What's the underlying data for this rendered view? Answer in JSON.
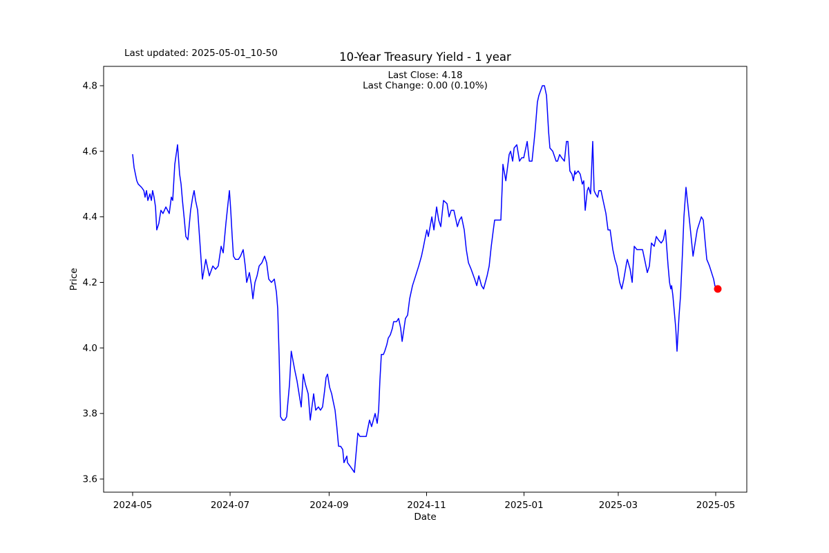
{
  "window": {
    "background": "#ffffff"
  },
  "annotation": {
    "last_updated": "Last updated: 2025-05-01_10-50"
  },
  "title": "10-Year Treasury Yield - 1 year",
  "subtitle_line1": "Last Close: 4.18",
  "subtitle_line2": "Last Change: 0.00 (0.10%)",
  "axes": {
    "x_label": "Date",
    "y_label": "Price",
    "x_tick_labels": [
      "2024-05",
      "2024-07",
      "2024-09",
      "2024-11",
      "2025-01",
      "2025-03",
      "2025-05"
    ],
    "y_tick_labels": [
      "3.6",
      "3.8",
      "4.0",
      "4.2",
      "4.4",
      "4.6",
      "4.8"
    ]
  },
  "chart_data": {
    "type": "line",
    "title": "10-Year Treasury Yield - 1 year",
    "xlabel": "Date",
    "ylabel": "Price",
    "annotations": [
      "Last updated: 2025-05-01_10-50",
      "Last Close: 4.18",
      "Last Change: 0.00 (0.10%)"
    ],
    "last_close": 4.18,
    "last_change": "0.00 (0.10%)",
    "line_color": "#0000ff",
    "last_point_marker_color": "#ff0000",
    "grid": false,
    "legend": "none",
    "x_unit": "days since 2024-05-01",
    "x_range_dates": [
      "2024-05-01",
      "2025-05-01"
    ],
    "xlim_days": [
      -18.2,
      384.5
    ],
    "ylim": [
      3.56,
      4.86
    ],
    "x_tick_days": [
      0,
      61,
      123,
      184,
      245,
      304,
      365
    ],
    "x_tick_labels": [
      "2024-05",
      "2024-07",
      "2024-09",
      "2024-11",
      "2025-01",
      "2025-03",
      "2025-05"
    ],
    "y_tick_values": [
      3.6,
      3.8,
      4.0,
      4.2,
      4.4,
      4.6,
      4.8
    ],
    "y_tick_labels": [
      "3.6",
      "3.8",
      "4.0",
      "4.2",
      "4.4",
      "4.6",
      "4.8"
    ],
    "series": [
      {
        "name": "10-Year Treasury Yield",
        "points": [
          [
            0,
            4.59
          ],
          [
            0.9,
            4.55
          ],
          [
            2.6,
            4.51
          ],
          [
            3.5,
            4.5
          ],
          [
            5.6,
            4.49
          ],
          [
            7,
            4.48
          ],
          [
            7.8,
            4.46
          ],
          [
            8.7,
            4.48
          ],
          [
            9.5,
            4.45
          ],
          [
            10.8,
            4.47
          ],
          [
            11.7,
            4.45
          ],
          [
            12.5,
            4.48
          ],
          [
            13.4,
            4.46
          ],
          [
            14.3,
            4.43
          ],
          [
            15.1,
            4.36
          ],
          [
            16.4,
            4.38
          ],
          [
            17.7,
            4.42
          ],
          [
            19,
            4.41
          ],
          [
            20.8,
            4.43
          ],
          [
            22.9,
            4.41
          ],
          [
            24.2,
            4.46
          ],
          [
            25.1,
            4.45
          ],
          [
            26.4,
            4.56
          ],
          [
            28.1,
            4.62
          ],
          [
            29.4,
            4.53
          ],
          [
            30.3,
            4.5
          ],
          [
            31.2,
            4.45
          ],
          [
            32.4,
            4.39
          ],
          [
            33.3,
            4.34
          ],
          [
            34.6,
            4.33
          ],
          [
            36.3,
            4.42
          ],
          [
            37.6,
            4.46
          ],
          [
            38.5,
            4.48
          ],
          [
            39.4,
            4.45
          ],
          [
            40.7,
            4.42
          ],
          [
            42,
            4.33
          ],
          [
            43.7,
            4.21
          ],
          [
            45.8,
            4.27
          ],
          [
            48,
            4.22
          ],
          [
            50.2,
            4.25
          ],
          [
            51.9,
            4.24
          ],
          [
            53.6,
            4.25
          ],
          [
            55.4,
            4.31
          ],
          [
            56.7,
            4.29
          ],
          [
            58.4,
            4.38
          ],
          [
            59.7,
            4.44
          ],
          [
            60.6,
            4.48
          ],
          [
            61.4,
            4.42
          ],
          [
            62.3,
            4.34
          ],
          [
            63.1,
            4.28
          ],
          [
            64.4,
            4.27
          ],
          [
            66.2,
            4.27
          ],
          [
            67.5,
            4.28
          ],
          [
            69.2,
            4.3
          ],
          [
            70.5,
            4.25
          ],
          [
            71.4,
            4.2
          ],
          [
            73.1,
            4.23
          ],
          [
            74.4,
            4.19
          ],
          [
            75.3,
            4.15
          ],
          [
            76.6,
            4.2
          ],
          [
            77.9,
            4.22
          ],
          [
            79.2,
            4.25
          ],
          [
            80.9,
            4.26
          ],
          [
            82.6,
            4.28
          ],
          [
            83.9,
            4.26
          ],
          [
            85.2,
            4.21
          ],
          [
            86.9,
            4.2
          ],
          [
            88.7,
            4.21
          ],
          [
            90,
            4.17
          ],
          [
            90.8,
            4.12
          ],
          [
            91.7,
            3.98
          ],
          [
            92.6,
            3.79
          ],
          [
            93.9,
            3.78
          ],
          [
            95.2,
            3.78
          ],
          [
            96.4,
            3.79
          ],
          [
            98.2,
            3.89
          ],
          [
            99.3,
            3.99
          ],
          [
            100.8,
            3.95
          ],
          [
            101.6,
            3.93
          ],
          [
            102.9,
            3.9
          ],
          [
            104.2,
            3.86
          ],
          [
            105.5,
            3.82
          ],
          [
            106.8,
            3.92
          ],
          [
            108.1,
            3.89
          ],
          [
            109.9,
            3.86
          ],
          [
            111.2,
            3.78
          ],
          [
            113.3,
            3.86
          ],
          [
            114.6,
            3.81
          ],
          [
            116.3,
            3.82
          ],
          [
            117.6,
            3.81
          ],
          [
            118.9,
            3.82
          ],
          [
            120.2,
            3.87
          ],
          [
            121.1,
            3.91
          ],
          [
            122,
            3.92
          ],
          [
            123.3,
            3.88
          ],
          [
            124.6,
            3.86
          ],
          [
            125.4,
            3.84
          ],
          [
            126.7,
            3.81
          ],
          [
            127.8,
            3.76
          ],
          [
            128.9,
            3.7
          ],
          [
            130.2,
            3.7
          ],
          [
            131.5,
            3.69
          ],
          [
            132.3,
            3.65
          ],
          [
            134.1,
            3.67
          ],
          [
            134.5,
            3.65
          ],
          [
            136,
            3.64
          ],
          [
            137.5,
            3.63
          ],
          [
            138.8,
            3.62
          ],
          [
            141,
            3.74
          ],
          [
            142.3,
            3.73
          ],
          [
            144,
            3.73
          ],
          [
            146.2,
            3.73
          ],
          [
            148.3,
            3.78
          ],
          [
            149.6,
            3.76
          ],
          [
            151.8,
            3.8
          ],
          [
            153.1,
            3.77
          ],
          [
            154,
            3.81
          ],
          [
            154.8,
            3.9
          ],
          [
            155.7,
            3.98
          ],
          [
            157,
            3.98
          ],
          [
            157.8,
            3.99
          ],
          [
            159.1,
            4.01
          ],
          [
            160,
            4.03
          ],
          [
            161.3,
            4.04
          ],
          [
            162.6,
            4.06
          ],
          [
            163.4,
            4.08
          ],
          [
            165.2,
            4.08
          ],
          [
            166.5,
            4.09
          ],
          [
            167.8,
            4.06
          ],
          [
            168.7,
            4.02
          ],
          [
            170.8,
            4.09
          ],
          [
            172.1,
            4.1
          ],
          [
            173.4,
            4.15
          ],
          [
            175.2,
            4.19
          ],
          [
            176.5,
            4.21
          ],
          [
            177.8,
            4.23
          ],
          [
            179.1,
            4.25
          ],
          [
            180.8,
            4.28
          ],
          [
            182.1,
            4.31
          ],
          [
            182.9,
            4.33
          ],
          [
            184.2,
            4.36
          ],
          [
            185.1,
            4.34
          ],
          [
            187.3,
            4.4
          ],
          [
            188.6,
            4.36
          ],
          [
            190.3,
            4.43
          ],
          [
            191.6,
            4.39
          ],
          [
            192.9,
            4.37
          ],
          [
            194.6,
            4.45
          ],
          [
            196.8,
            4.44
          ],
          [
            198.1,
            4.4
          ],
          [
            199.4,
            4.42
          ],
          [
            201.1,
            4.42
          ],
          [
            203.3,
            4.37
          ],
          [
            204.6,
            4.39
          ],
          [
            205.9,
            4.4
          ],
          [
            207.6,
            4.36
          ],
          [
            208.9,
            4.3
          ],
          [
            210.2,
            4.26
          ],
          [
            211.9,
            4.24
          ],
          [
            214.1,
            4.21
          ],
          [
            215.4,
            4.19
          ],
          [
            216.7,
            4.22
          ],
          [
            218.4,
            4.19
          ],
          [
            219.7,
            4.18
          ],
          [
            221.9,
            4.22
          ],
          [
            223.2,
            4.25
          ],
          [
            224.5,
            4.31
          ],
          [
            225.8,
            4.36
          ],
          [
            226.6,
            4.39
          ],
          [
            227.9,
            4.39
          ],
          [
            229.2,
            4.39
          ],
          [
            230.5,
            4.39
          ],
          [
            231.4,
            4.5
          ],
          [
            231.8,
            4.56
          ],
          [
            233.6,
            4.51
          ],
          [
            235.7,
            4.59
          ],
          [
            236.6,
            4.6
          ],
          [
            237.9,
            4.57
          ],
          [
            238.8,
            4.61
          ],
          [
            240.5,
            4.62
          ],
          [
            242.2,
            4.57
          ],
          [
            243.5,
            4.58
          ],
          [
            244.8,
            4.58
          ],
          [
            246.1,
            4.61
          ],
          [
            247,
            4.63
          ],
          [
            248.3,
            4.57
          ],
          [
            250,
            4.57
          ],
          [
            251.3,
            4.63
          ],
          [
            252.1,
            4.67
          ],
          [
            253.4,
            4.75
          ],
          [
            254.3,
            4.77
          ],
          [
            256.5,
            4.8
          ],
          [
            257.8,
            4.8
          ],
          [
            259.1,
            4.77
          ],
          [
            260.4,
            4.66
          ],
          [
            261.2,
            4.61
          ],
          [
            263,
            4.6
          ],
          [
            265.1,
            4.57
          ],
          [
            266,
            4.57
          ],
          [
            267.3,
            4.59
          ],
          [
            268.6,
            4.58
          ],
          [
            270.3,
            4.57
          ],
          [
            271.6,
            4.63
          ],
          [
            272.5,
            4.63
          ],
          [
            273.7,
            4.54
          ],
          [
            275,
            4.53
          ],
          [
            275.9,
            4.51
          ],
          [
            276.8,
            4.54
          ],
          [
            277.2,
            4.53
          ],
          [
            278.9,
            4.54
          ],
          [
            280.2,
            4.53
          ],
          [
            281.5,
            4.5
          ],
          [
            282.4,
            4.51
          ],
          [
            283.3,
            4.42
          ],
          [
            284.6,
            4.48
          ],
          [
            285.4,
            4.49
          ],
          [
            286.7,
            4.47
          ],
          [
            288,
            4.63
          ],
          [
            288.9,
            4.48
          ],
          [
            289.8,
            4.47
          ],
          [
            291.1,
            4.46
          ],
          [
            291.9,
            4.48
          ],
          [
            293.2,
            4.48
          ],
          [
            294.5,
            4.45
          ],
          [
            296.3,
            4.41
          ],
          [
            297.6,
            4.36
          ],
          [
            298.9,
            4.36
          ],
          [
            300.6,
            4.3
          ],
          [
            301.9,
            4.27
          ],
          [
            303.2,
            4.25
          ],
          [
            304.9,
            4.2
          ],
          [
            306.2,
            4.18
          ],
          [
            307.5,
            4.21
          ],
          [
            309.2,
            4.26
          ],
          [
            309.7,
            4.27
          ],
          [
            311.4,
            4.24
          ],
          [
            312.7,
            4.2
          ],
          [
            314,
            4.31
          ],
          [
            315.7,
            4.3
          ],
          [
            317,
            4.3
          ],
          [
            318.3,
            4.3
          ],
          [
            319.2,
            4.3
          ],
          [
            320.5,
            4.27
          ],
          [
            322.2,
            4.23
          ],
          [
            323.5,
            4.25
          ],
          [
            324.8,
            4.32
          ],
          [
            326.5,
            4.31
          ],
          [
            327.8,
            4.34
          ],
          [
            329.1,
            4.33
          ],
          [
            330.9,
            4.32
          ],
          [
            332.2,
            4.33
          ],
          [
            333.5,
            4.36
          ],
          [
            335.2,
            4.25
          ],
          [
            336.1,
            4.2
          ],
          [
            336.9,
            4.18
          ],
          [
            337.4,
            4.19
          ],
          [
            338.2,
            4.16
          ],
          [
            340,
            4.06
          ],
          [
            340.8,
            3.99
          ],
          [
            342.1,
            4.1
          ],
          [
            343,
            4.16
          ],
          [
            344.3,
            4.3
          ],
          [
            345.1,
            4.4
          ],
          [
            346.4,
            4.49
          ],
          [
            347.7,
            4.43
          ],
          [
            349.4,
            4.35
          ],
          [
            350.8,
            4.28
          ],
          [
            352.1,
            4.32
          ],
          [
            353.4,
            4.36
          ],
          [
            354.7,
            4.38
          ],
          [
            356,
            4.4
          ],
          [
            357.2,
            4.39
          ],
          [
            358.1,
            4.34
          ],
          [
            359.4,
            4.27
          ],
          [
            360.3,
            4.26
          ],
          [
            361.1,
            4.25
          ],
          [
            362.4,
            4.23
          ],
          [
            363.7,
            4.21
          ],
          [
            364.5,
            4.19
          ],
          [
            365.4,
            4.18
          ],
          [
            366.3,
            4.18
          ]
        ]
      }
    ]
  }
}
